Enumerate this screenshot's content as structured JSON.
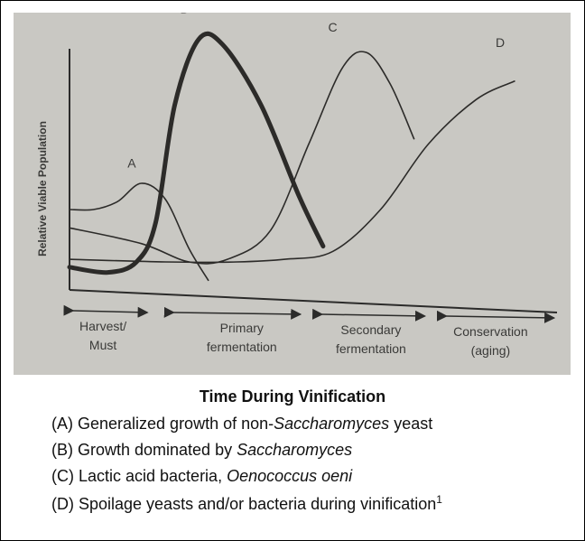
{
  "chart_data": {
    "type": "line",
    "ylabel": "Relative Viable Population",
    "phases": [
      {
        "id": "harvest",
        "line1": "Harvest/",
        "line2": "Must"
      },
      {
        "id": "primary",
        "line1": "Primary",
        "line2": "fermentation"
      },
      {
        "id": "secondary",
        "line1": "Secondary",
        "line2": "fermentation"
      },
      {
        "id": "conservation",
        "line1": "Conservation",
        "line2": "(aging)"
      }
    ],
    "series": [
      {
        "name": "A",
        "bold": false,
        "points": [
          [
            0,
            0.3
          ],
          [
            0.05,
            0.3
          ],
          [
            0.1,
            0.33
          ],
          [
            0.15,
            0.4
          ],
          [
            0.2,
            0.34
          ],
          [
            0.25,
            0.15
          ],
          [
            0.29,
            0.03
          ]
        ]
      },
      {
        "name": "B",
        "bold": true,
        "points": [
          [
            0,
            0.08
          ],
          [
            0.08,
            0.06
          ],
          [
            0.14,
            0.1
          ],
          [
            0.18,
            0.25
          ],
          [
            0.22,
            0.7
          ],
          [
            0.27,
            0.95
          ],
          [
            0.32,
            0.93
          ],
          [
            0.4,
            0.7
          ],
          [
            0.48,
            0.35
          ],
          [
            0.53,
            0.16
          ]
        ]
      },
      {
        "name": "C",
        "bold": false,
        "points": [
          [
            0,
            0.23
          ],
          [
            0.15,
            0.17
          ],
          [
            0.25,
            0.1
          ],
          [
            0.33,
            0.11
          ],
          [
            0.42,
            0.22
          ],
          [
            0.5,
            0.55
          ],
          [
            0.57,
            0.84
          ],
          [
            0.62,
            0.9
          ],
          [
            0.67,
            0.78
          ],
          [
            0.72,
            0.57
          ]
        ]
      },
      {
        "name": "D",
        "bold": false,
        "points": [
          [
            0,
            0.11
          ],
          [
            0.2,
            0.1
          ],
          [
            0.35,
            0.1
          ],
          [
            0.45,
            0.11
          ],
          [
            0.55,
            0.14
          ],
          [
            0.65,
            0.3
          ],
          [
            0.75,
            0.55
          ],
          [
            0.85,
            0.72
          ],
          [
            0.93,
            0.79
          ]
        ]
      }
    ]
  },
  "caption": {
    "title": "Time During Vinification",
    "a_prefix": "(A) Generalized growth of non-",
    "a_italic": "Saccharomyces",
    "a_suffix": " yeast",
    "b_prefix": "(B) Growth dominated by ",
    "b_italic": "Saccharomyces",
    "c_prefix": "(C) Lactic acid bacteria, ",
    "c_italic": "Oenococcus oeni",
    "d_text": "(D) Spoilage yeasts and/or bacteria during vinification",
    "d_sup": "1"
  }
}
